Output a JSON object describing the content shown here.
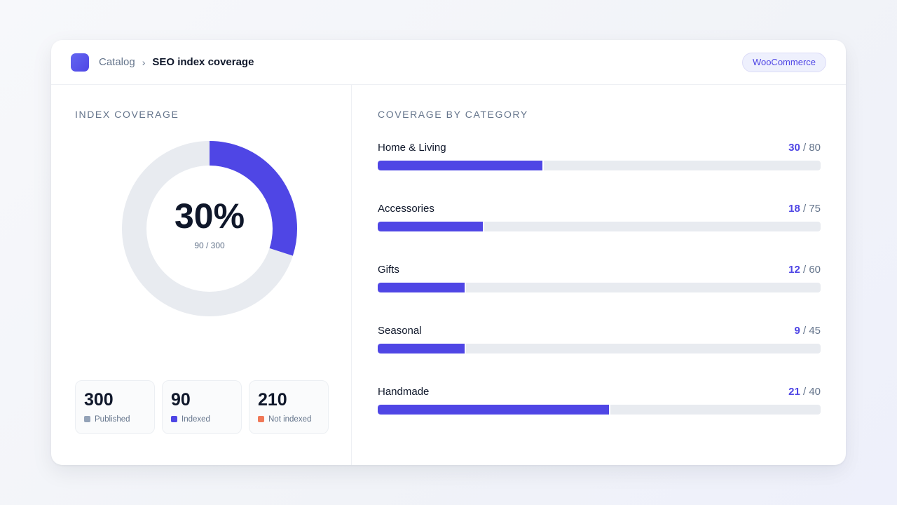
{
  "header": {
    "breadcrumb_parent": "Catalog",
    "breadcrumb_separator": "›",
    "page_title": "SEO index coverage",
    "platform_badge": "WooCommerce"
  },
  "coverage": {
    "section_title": "INDEX COVERAGE",
    "percent_label": "30%",
    "ratio_label": "90 / 300",
    "indexed_fraction": 0.3
  },
  "stats": [
    {
      "value": "300",
      "label": "Published",
      "color": "#94a3b8"
    },
    {
      "value": "90",
      "label": "Indexed",
      "color": "#4f46e5"
    },
    {
      "value": "210",
      "label": "Not indexed",
      "color": "#f07857"
    }
  ],
  "categories": {
    "section_title": "COVERAGE BY CATEGORY",
    "items": [
      {
        "name": "Home & Living",
        "indexed": 30,
        "total": 80
      },
      {
        "name": "Accessories",
        "indexed": 18,
        "total": 75
      },
      {
        "name": "Gifts",
        "indexed": 12,
        "total": 60
      },
      {
        "name": "Seasonal",
        "indexed": 9,
        "total": 45
      },
      {
        "name": "Handmade",
        "indexed": 21,
        "total": 40
      }
    ]
  },
  "colors": {
    "accent": "#4f46e5",
    "track": "#e8ebf0"
  }
}
